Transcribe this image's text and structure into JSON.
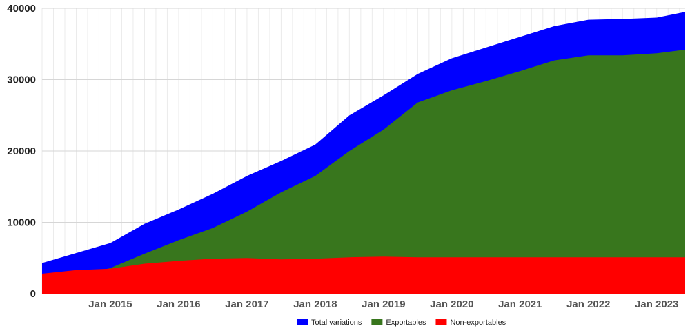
{
  "chart_data": {
    "type": "area",
    "stacked": false,
    "title": "",
    "xlabel": "",
    "ylabel": "",
    "xlim": [
      "2014-01",
      "2023-06"
    ],
    "ylim": [
      0,
      40000
    ],
    "y_ticks": [
      "0",
      "10000",
      "20000",
      "30000",
      "40000"
    ],
    "x_ticks": [
      {
        "label": "Jan 2015",
        "date": "2015-01"
      },
      {
        "label": "Jan 2016",
        "date": "2016-01"
      },
      {
        "label": "Jan 2017",
        "date": "2017-01"
      },
      {
        "label": "Jan 2018",
        "date": "2018-01"
      },
      {
        "label": "Jan 2019",
        "date": "2019-01"
      },
      {
        "label": "Jan 2020",
        "date": "2020-01"
      },
      {
        "label": "Jan 2021",
        "date": "2021-01"
      },
      {
        "label": "Jan 2022",
        "date": "2022-01"
      },
      {
        "label": "Jan 2023",
        "date": "2023-01"
      }
    ],
    "grid": true,
    "legend_position": "bottom",
    "x": [
      "2014-01",
      "2014-07",
      "2015-01",
      "2015-07",
      "2016-01",
      "2016-07",
      "2017-01",
      "2017-07",
      "2018-01",
      "2018-07",
      "2019-01",
      "2019-07",
      "2020-01",
      "2020-07",
      "2021-01",
      "2021-07",
      "2022-01",
      "2022-07",
      "2023-01",
      "2023-06"
    ],
    "series": [
      {
        "name": "Total variations",
        "color": "#0000ff",
        "values": [
          4300,
          5700,
          7100,
          9800,
          11800,
          14000,
          16500,
          18600,
          20900,
          25000,
          27800,
          30800,
          33000,
          34500,
          36000,
          37500,
          38400,
          38500,
          38700,
          39500
        ]
      },
      {
        "name": "Exportables",
        "color": "#38761d",
        "values": [
          1700,
          2400,
          3600,
          5600,
          7500,
          9200,
          11500,
          14200,
          16500,
          20000,
          23000,
          26800,
          28500,
          29800,
          31200,
          32700,
          33400,
          33400,
          33700,
          34200
        ]
      },
      {
        "name": "Non-exportables",
        "color": "#ff0000",
        "values": [
          2800,
          3300,
          3500,
          4200,
          4600,
          4900,
          5000,
          4800,
          4900,
          5100,
          5200,
          5100,
          5100,
          5100,
          5100,
          5100,
          5100,
          5100,
          5100,
          5100
        ]
      }
    ]
  }
}
